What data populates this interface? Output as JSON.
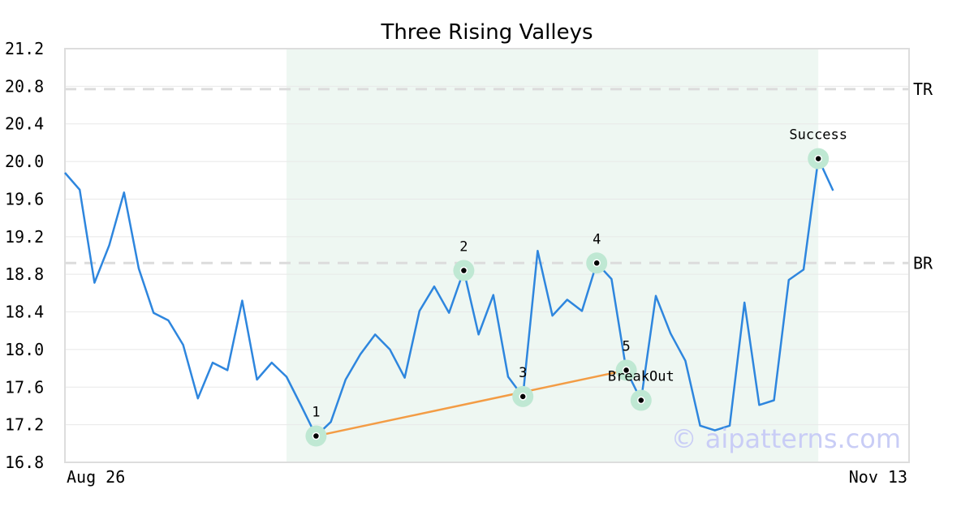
{
  "chart_data": {
    "type": "line",
    "title": "Three Rising Valleys",
    "xlabel": "",
    "ylabel": "",
    "ylim": [
      16.8,
      21.2
    ],
    "yticks": [
      "21.2",
      "20.8",
      "20.4",
      "20.0",
      "19.6",
      "19.2",
      "18.8",
      "18.4",
      "18.0",
      "17.6",
      "17.2",
      "16.8"
    ],
    "xtick_labels": [
      "Aug 26",
      "Nov 13"
    ],
    "grid": true,
    "series": [
      {
        "color": "#2e86de",
        "values": [
          19.88,
          19.7,
          18.71,
          19.11,
          19.67,
          18.86,
          18.39,
          18.31,
          18.05,
          17.48,
          17.86,
          17.78,
          18.52,
          17.68,
          17.86,
          17.71,
          17.4,
          17.08,
          17.23,
          17.68,
          17.95,
          18.16,
          18.0,
          17.7,
          18.41,
          18.67,
          18.39,
          18.84,
          18.16,
          18.58,
          17.71,
          17.5,
          19.05,
          18.36,
          18.53,
          18.41,
          18.92,
          18.75,
          17.78,
          17.46,
          18.57,
          18.17,
          17.88,
          17.19,
          17.14,
          17.19,
          18.5,
          17.41,
          17.46,
          18.74,
          18.85,
          20.03,
          19.69
        ]
      }
    ],
    "pattern_zone": {
      "start_index": 15,
      "end_index": 51,
      "color": "#eef7f2"
    },
    "levels": [
      {
        "label": "TR",
        "value": 20.77
      },
      {
        "label": "BR",
        "value": 18.92
      }
    ],
    "support_line": {
      "from_index": 17,
      "to_index": 38,
      "color": "#f39c45"
    },
    "points": [
      {
        "label": "1",
        "index": 17,
        "value": 17.08
      },
      {
        "label": "2",
        "index": 27,
        "value": 18.84
      },
      {
        "label": "3",
        "index": 31,
        "value": 17.5
      },
      {
        "label": "4",
        "index": 36,
        "value": 18.92
      },
      {
        "label": "5",
        "index": 38,
        "value": 17.78
      },
      {
        "label": "BreakOut",
        "index": 39,
        "value": 17.46
      },
      {
        "label": "Success",
        "index": 51,
        "value": 20.03
      }
    ],
    "watermark": "© aipatterns.com"
  }
}
